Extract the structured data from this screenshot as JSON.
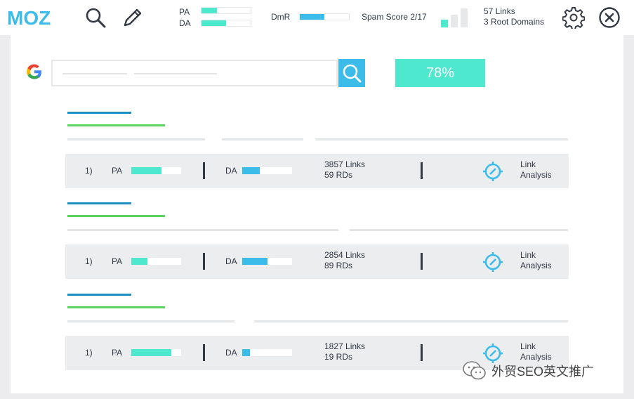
{
  "toolbar": {
    "logo": "MOZ",
    "pa_label": "PA",
    "da_label": "DA",
    "pa_fill": 0.32,
    "da_fill": 0.5,
    "dmr_label": "DmR",
    "dmr_fill": 0.5,
    "spam_label": "Spam Score 2/17",
    "links_line1": "57 Links",
    "links_line2": "3 Root Domains",
    "icons": [
      "search-icon",
      "pencil-icon",
      "signal-bars-icon",
      "gear-icon",
      "close-icon"
    ]
  },
  "search": {
    "score": "78%"
  },
  "results": [
    {
      "rank": "1)",
      "pa_label": "PA",
      "pa_fill": 0.6,
      "da_label": "DA",
      "da_fill": 0.35,
      "links": "3857 Links",
      "rds": "59 RDs",
      "action_line1": "Link",
      "action_line2": "Analysis"
    },
    {
      "rank": "1)",
      "pa_label": "PA",
      "pa_fill": 0.33,
      "da_label": "DA",
      "da_fill": 0.5,
      "links": "2854 Links",
      "rds": "89 RDs",
      "action_line1": "Link",
      "action_line2": "Analysis"
    },
    {
      "rank": "1)",
      "pa_label": "PA",
      "pa_fill": 0.8,
      "da_label": "DA",
      "da_fill": 0.15,
      "links": "1827 Links",
      "rds": "19 RDs",
      "action_line1": "Link",
      "action_line2": "Analysis"
    }
  ],
  "watermark": {
    "text": "外贸SEO英文推广"
  },
  "colors": {
    "teal": "#4ee8cf",
    "blue": "#3cbce8",
    "dark_blue": "#1c8fc0",
    "green": "#5bd35f",
    "text": "#333a46"
  }
}
